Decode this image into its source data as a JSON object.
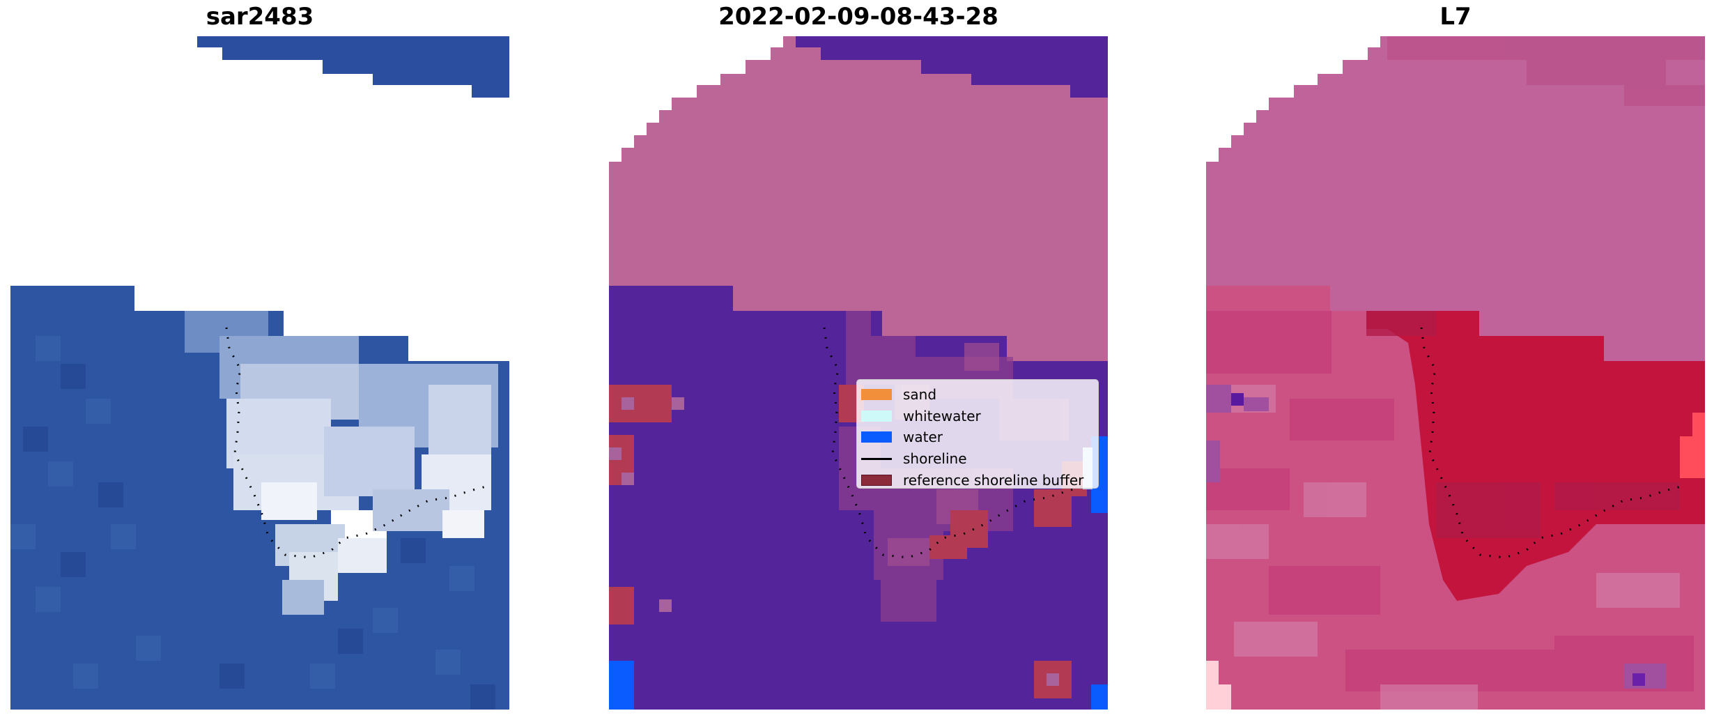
{
  "panels": [
    {
      "title": "sar2483",
      "kind": "rgb"
    },
    {
      "title": "2022-02-09-08-43-28",
      "kind": "classified"
    },
    {
      "title": "L7",
      "kind": "probability"
    }
  ],
  "legend": [
    {
      "label": "sand",
      "color": "#f28f3b",
      "type": "patch"
    },
    {
      "label": "whitewater",
      "color": "#cdfaf8",
      "type": "patch"
    },
    {
      "label": "water",
      "color": "#0a5cff",
      "type": "patch"
    },
    {
      "label": "shoreline",
      "color": "#000000",
      "type": "line"
    },
    {
      "label": "reference shoreline buffer",
      "color": "#8b2a3a",
      "type": "patch"
    }
  ],
  "colors": {
    "nodata": "#ffffff",
    "ocean": "#2b4f9e",
    "classified_background": "#53249a",
    "classified_land": "#bb6696",
    "probability_land": "#c0639a",
    "probability_high": "#c3143e"
  }
}
